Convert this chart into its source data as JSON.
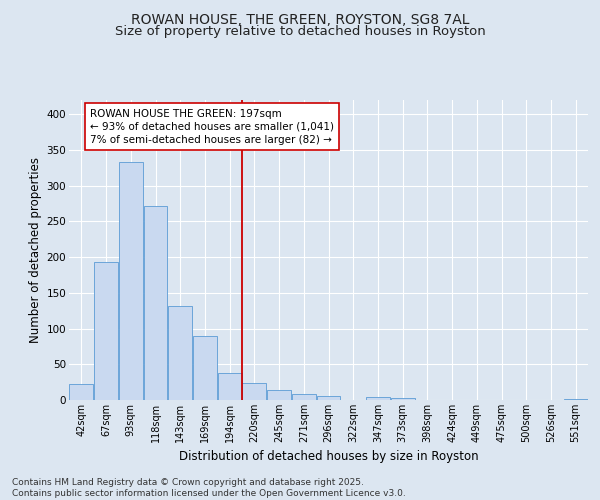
{
  "title_line1": "ROWAN HOUSE, THE GREEN, ROYSTON, SG8 7AL",
  "title_line2": "Size of property relative to detached houses in Royston",
  "xlabel": "Distribution of detached houses by size in Royston",
  "ylabel": "Number of detached properties",
  "bin_labels": [
    "42sqm",
    "67sqm",
    "93sqm",
    "118sqm",
    "143sqm",
    "169sqm",
    "194sqm",
    "220sqm",
    "245sqm",
    "271sqm",
    "296sqm",
    "322sqm",
    "347sqm",
    "373sqm",
    "398sqm",
    "424sqm",
    "449sqm",
    "475sqm",
    "500sqm",
    "526sqm",
    "551sqm"
  ],
  "bar_values": [
    22,
    193,
    333,
    271,
    131,
    90,
    38,
    24,
    14,
    8,
    5,
    0,
    4,
    3,
    0,
    0,
    0,
    0,
    0,
    0,
    2
  ],
  "bar_color": "#c9d9f0",
  "bar_edge_color": "#5b9bd5",
  "background_color": "#dce6f1",
  "plot_bg_color": "#dce6f1",
  "grid_color": "#ffffff",
  "annotation_line1": "ROWAN HOUSE THE GREEN: 197sqm",
  "annotation_line2": "← 93% of detached houses are smaller (1,041)",
  "annotation_line3": "7% of semi-detached houses are larger (82) →",
  "annotation_box_color": "#ffffff",
  "annotation_box_edge": "#cc0000",
  "vline_color": "#cc0000",
  "vline_x_index": 6.5,
  "ylim": [
    0,
    420
  ],
  "yticks": [
    0,
    50,
    100,
    150,
    200,
    250,
    300,
    350,
    400
  ],
  "footnote": "Contains HM Land Registry data © Crown copyright and database right 2025.\nContains public sector information licensed under the Open Government Licence v3.0.",
  "title_fontsize": 10,
  "subtitle_fontsize": 9.5,
  "axis_label_fontsize": 8.5,
  "tick_fontsize": 7,
  "annotation_fontsize": 7.5,
  "footnote_fontsize": 6.5
}
